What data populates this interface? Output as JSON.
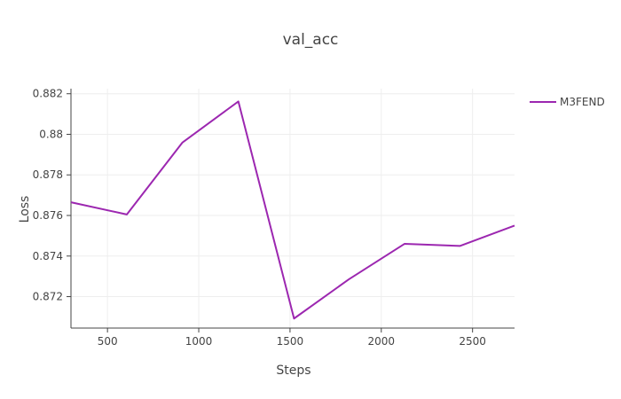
{
  "chart_data": {
    "type": "line",
    "title": "val_acc",
    "xlabel": "Steps",
    "ylabel": "Loss",
    "xlim": [
      300,
      2730
    ],
    "ylim": [
      0.87045,
      0.88225
    ],
    "x_ticks": [
      500,
      1000,
      1500,
      2000,
      2500
    ],
    "x_tick_labels": [
      "500",
      "1000",
      "1500",
      "2000",
      "2500"
    ],
    "y_ticks": [
      0.872,
      0.874,
      0.876,
      0.878,
      0.88,
      0.882
    ],
    "y_tick_labels": [
      "0.872",
      "0.874",
      "0.876",
      "0.878",
      "0.88",
      "0.882"
    ],
    "grid": true,
    "legend_position": "top-right",
    "series": [
      {
        "name": "M3FEND",
        "color": "#9c27b0",
        "x": [
          300,
          606,
          911,
          1217,
          1522,
          1822,
          2127,
          2432,
          2730
        ],
        "values": [
          0.87665,
          0.87605,
          0.8796,
          0.88162,
          0.87092,
          0.87285,
          0.8746,
          0.8745,
          0.8755
        ]
      }
    ]
  }
}
